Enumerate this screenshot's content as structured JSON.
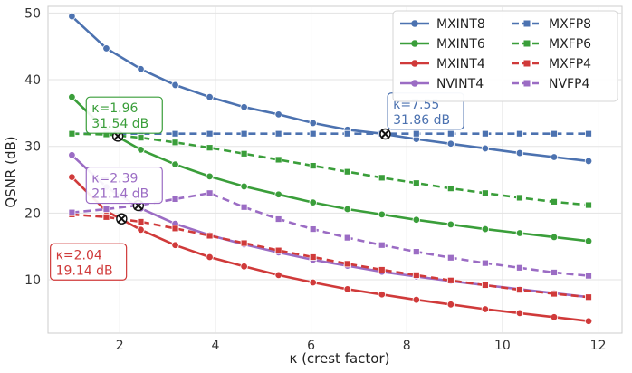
{
  "chart_data": {
    "type": "line",
    "xlabel": "κ (crest factor)",
    "ylabel": "QSNR (dB)",
    "xlim": [
      0.5,
      12.5
    ],
    "ylim": [
      2,
      51
    ],
    "x_ticks": [
      2,
      4,
      6,
      8,
      10,
      12
    ],
    "y_ticks": [
      10,
      20,
      30,
      40,
      50
    ],
    "grid": true,
    "legend_position": "top-right",
    "x": [
      1.0,
      1.72,
      2.44,
      3.16,
      3.88,
      4.6,
      5.32,
      6.04,
      6.76,
      7.48,
      8.2,
      8.92,
      9.64,
      10.36,
      11.08,
      11.8
    ],
    "series": [
      {
        "name": "MXINT8",
        "color": "#4c72b0",
        "style": "solid",
        "marker": "circle",
        "values": [
          49.5,
          44.7,
          41.6,
          39.2,
          37.4,
          35.9,
          34.8,
          33.5,
          32.5,
          31.9,
          31.1,
          30.4,
          29.7,
          29.0,
          28.4,
          27.8
        ]
      },
      {
        "name": "MXINT6",
        "color": "#3a9e3a",
        "style": "solid",
        "marker": "circle",
        "values": [
          37.4,
          32.4,
          29.5,
          27.3,
          25.5,
          24.0,
          22.8,
          21.6,
          20.6,
          19.8,
          19.0,
          18.3,
          17.6,
          17.0,
          16.4,
          15.8
        ]
      },
      {
        "name": "MXINT4",
        "color": "#d03a3a",
        "style": "solid",
        "marker": "circle",
        "values": [
          25.4,
          20.3,
          17.5,
          15.2,
          13.4,
          12.0,
          10.7,
          9.6,
          8.6,
          7.8,
          7.0,
          6.3,
          5.6,
          5.0,
          4.4,
          3.8
        ]
      },
      {
        "name": "NVINT4",
        "color": "#9b6cc4",
        "style": "solid",
        "marker": "circle",
        "values": [
          28.7,
          23.9,
          20.7,
          18.4,
          16.7,
          15.3,
          14.1,
          13.0,
          12.1,
          11.2,
          10.5,
          9.8,
          9.2,
          8.6,
          8.0,
          7.4
        ]
      },
      {
        "name": "MXFP8",
        "color": "#4c72b0",
        "style": "dashed",
        "marker": "square",
        "values": [
          31.9,
          31.9,
          31.9,
          31.9,
          31.9,
          31.9,
          31.9,
          31.9,
          31.9,
          31.9,
          31.9,
          31.9,
          31.9,
          31.9,
          31.9,
          31.9
        ]
      },
      {
        "name": "MXFP6",
        "color": "#3a9e3a",
        "style": "dashed",
        "marker": "square",
        "values": [
          31.9,
          31.8,
          31.3,
          30.6,
          29.8,
          28.9,
          28.0,
          27.1,
          26.2,
          25.3,
          24.5,
          23.7,
          23.0,
          22.3,
          21.7,
          21.2
        ]
      },
      {
        "name": "MXFP4",
        "color": "#d03a3a",
        "style": "dashed",
        "marker": "square",
        "values": [
          19.8,
          19.4,
          18.7,
          17.7,
          16.6,
          15.5,
          14.4,
          13.4,
          12.4,
          11.5,
          10.7,
          9.9,
          9.2,
          8.5,
          7.9,
          7.4
        ]
      },
      {
        "name": "NVFP4",
        "color": "#9b6cc4",
        "style": "dashed",
        "marker": "square",
        "values": [
          20.1,
          20.6,
          21.2,
          22.1,
          23.0,
          20.9,
          19.1,
          17.6,
          16.3,
          15.2,
          14.2,
          13.3,
          12.5,
          11.8,
          11.1,
          10.6
        ]
      }
    ],
    "crossovers": [
      {
        "x": 1.96,
        "y": 31.54,
        "color": "#3a9e3a",
        "line1": "κ=1.96",
        "line2": "31.54 dB",
        "box_at": [
          1.3,
          37.4
        ]
      },
      {
        "x": 7.55,
        "y": 31.86,
        "color": "#4c72b0",
        "line1": "κ=7.55",
        "line2": "31.86 dB",
        "box_at": [
          7.6,
          38.0
        ]
      },
      {
        "x": 2.39,
        "y": 21.14,
        "color": "#9b6cc4",
        "line1": "κ=2.39",
        "line2": "21.14 dB",
        "box_at": [
          1.3,
          26.9
        ]
      },
      {
        "x": 2.04,
        "y": 19.14,
        "color": "#d03a3a",
        "line1": "κ=2.04",
        "line2": "19.14 dB",
        "box_at": [
          0.55,
          15.4
        ]
      }
    ]
  }
}
